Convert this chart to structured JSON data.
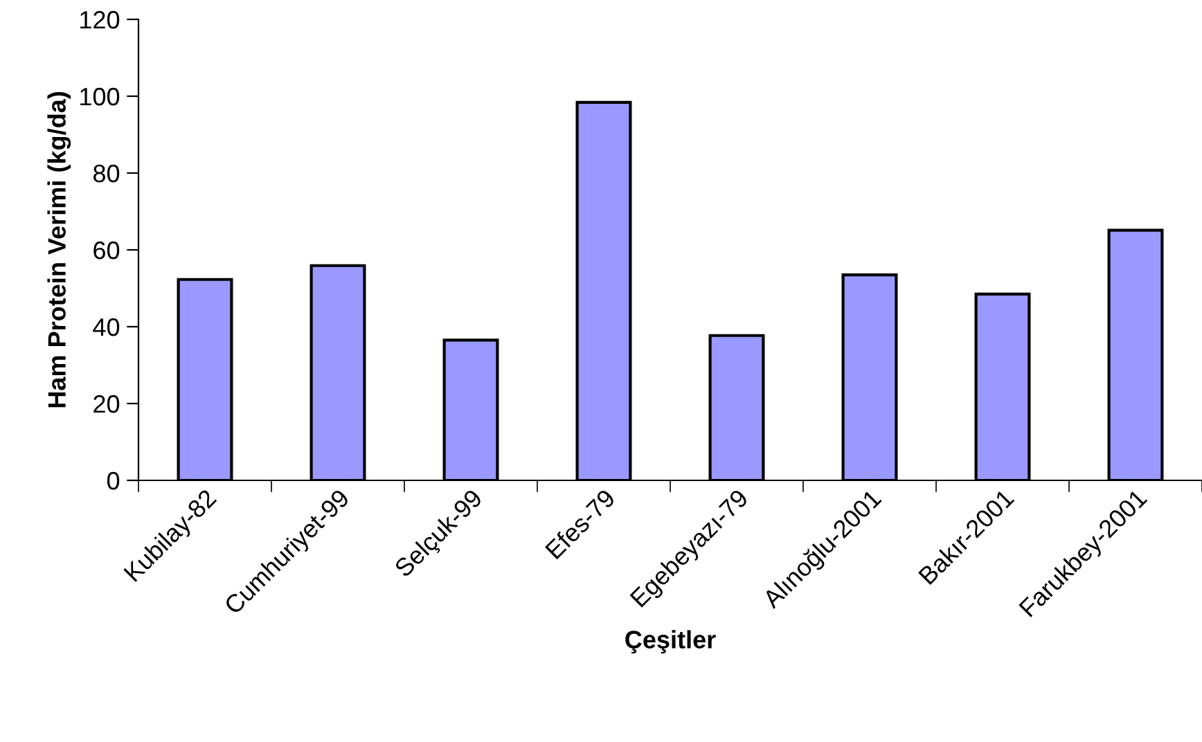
{
  "chart_data": {
    "type": "bar",
    "xlabel": "Çeşitler",
    "ylabel": "Ham Protein Verimi (kg/da)",
    "categories": [
      "Kubilay-82",
      "Cumhuriyet-99",
      "Selçuk-99",
      "Efes-79",
      "Egebeyazı-79",
      "Alınoğlu-2001",
      "Bakır-2001",
      "Farukbey-2001"
    ],
    "values": [
      52.3,
      55.9,
      36.5,
      98.4,
      37.7,
      53.5,
      48.5,
      65.1
    ],
    "color": "#9999ff",
    "ylim": [
      0,
      120
    ],
    "yticks": [
      0,
      20,
      40,
      60,
      80,
      100,
      120
    ],
    "grid": false,
    "legend": false
  }
}
